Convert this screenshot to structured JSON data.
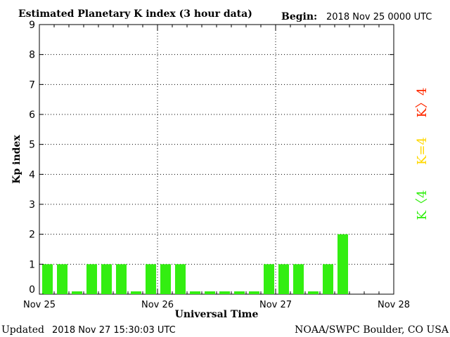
{
  "header": {
    "title": "Estimated Planetary K index (3 hour data)",
    "begin_label": "Begin:",
    "begin_value": "2018 Nov 25 0000 UTC"
  },
  "footer": {
    "updated_label": "Updated",
    "updated_value": "2018 Nov 27 15:30:03 UTC",
    "source": "NOAA/SWPC Boulder, CO USA"
  },
  "legend": {
    "high": {
      "text": "K〉4",
      "color": "#ff2a00"
    },
    "mid": {
      "text": "K=4",
      "color": "#ffd800"
    },
    "low": {
      "text": "K〈4",
      "color": "#33ee11"
    }
  },
  "chart_data": {
    "type": "bar",
    "title": "Estimated Planetary K index (3 hour data)",
    "xlabel": "Universal Time",
    "ylabel": "Kp index",
    "ylim": [
      0,
      9
    ],
    "yticks": [
      "0",
      "1",
      "2",
      "3",
      "4",
      "5",
      "6",
      "7",
      "8",
      "9"
    ],
    "xticks": [
      "Nov 25",
      "Nov 26",
      "Nov 27",
      "Nov 28"
    ],
    "x_start": "2018-11-25 00:00 UTC",
    "interval_hours": 3,
    "slots_per_day": 8,
    "days": 3,
    "grid": "dotted, at day boundaries and integer Kp",
    "bar_color": "#33ee11",
    "values": [
      1,
      1,
      0,
      1,
      1,
      1,
      0,
      1,
      1,
      1,
      0,
      0,
      0,
      0,
      0,
      1,
      1,
      1,
      0,
      1,
      2
    ]
  }
}
